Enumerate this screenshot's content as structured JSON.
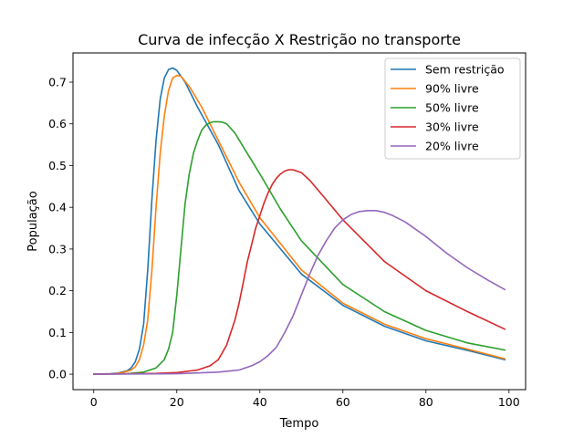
{
  "chart_data": {
    "type": "line",
    "title": "Curva de infecção X Restrição no transporte",
    "xlabel": "Tempo",
    "ylabel": "População",
    "xlim": [
      -5,
      104
    ],
    "ylim": [
      -0.037,
      0.77
    ],
    "xticks": [
      0,
      20,
      40,
      60,
      80,
      100
    ],
    "yticks": [
      0.0,
      0.1,
      0.2,
      0.3,
      0.4,
      0.5,
      0.6,
      0.7
    ],
    "grid": false,
    "legend_position": "top-right",
    "series": [
      {
        "name": "Sem restrição",
        "color": "#1f77b4",
        "x": [
          0,
          4,
          6,
          8,
          9,
          10,
          11,
          12,
          13,
          14,
          15,
          16,
          17,
          18,
          19,
          20,
          22,
          25,
          30,
          35,
          40,
          50,
          60,
          70,
          80,
          90,
          99
        ],
        "y": [
          0.0,
          0.001,
          0.003,
          0.008,
          0.015,
          0.03,
          0.06,
          0.12,
          0.25,
          0.42,
          0.56,
          0.66,
          0.71,
          0.73,
          0.734,
          0.728,
          0.7,
          0.64,
          0.55,
          0.44,
          0.36,
          0.24,
          0.165,
          0.115,
          0.08,
          0.057,
          0.035
        ]
      },
      {
        "name": "90% livre",
        "color": "#ff7f0e",
        "x": [
          0,
          5,
          7,
          9,
          10,
          11,
          12,
          13,
          14,
          15,
          16,
          17,
          18,
          19,
          20,
          21,
          23,
          26,
          30,
          35,
          40,
          50,
          60,
          70,
          80,
          90,
          99
        ],
        "y": [
          0.0,
          0.001,
          0.004,
          0.01,
          0.018,
          0.035,
          0.07,
          0.13,
          0.25,
          0.4,
          0.53,
          0.62,
          0.68,
          0.71,
          0.716,
          0.714,
          0.69,
          0.64,
          0.56,
          0.46,
          0.375,
          0.25,
          0.17,
          0.12,
          0.085,
          0.06,
          0.037
        ]
      },
      {
        "name": "50% livre",
        "color": "#2ca02c",
        "x": [
          0,
          8,
          12,
          15,
          17,
          18,
          19,
          20,
          21,
          22,
          23,
          24,
          25,
          26,
          27,
          28,
          29,
          30,
          31,
          32,
          34,
          36,
          40,
          45,
          50,
          60,
          70,
          80,
          90,
          99
        ],
        "y": [
          0.0,
          0.001,
          0.005,
          0.015,
          0.035,
          0.06,
          0.1,
          0.19,
          0.3,
          0.41,
          0.48,
          0.53,
          0.56,
          0.585,
          0.597,
          0.603,
          0.605,
          0.605,
          0.604,
          0.6,
          0.578,
          0.545,
          0.48,
          0.395,
          0.32,
          0.215,
          0.15,
          0.105,
          0.075,
          0.058
        ]
      },
      {
        "name": "30% livre",
        "color": "#d62728",
        "x": [
          0,
          15,
          20,
          25,
          28,
          30,
          32,
          34,
          35,
          36,
          37,
          38,
          39,
          40,
          41,
          42,
          43,
          44,
          45,
          46,
          47,
          48,
          50,
          52,
          55,
          60,
          70,
          80,
          90,
          99
        ],
        "y": [
          0.0,
          0.002,
          0.004,
          0.01,
          0.02,
          0.035,
          0.07,
          0.13,
          0.17,
          0.22,
          0.27,
          0.31,
          0.35,
          0.38,
          0.41,
          0.435,
          0.455,
          0.47,
          0.48,
          0.487,
          0.49,
          0.49,
          0.483,
          0.465,
          0.43,
          0.37,
          0.27,
          0.2,
          0.15,
          0.108
        ]
      },
      {
        "name": "20% livre",
        "color": "#9467bd",
        "x": [
          0,
          20,
          30,
          35,
          38,
          40,
          42,
          44,
          46,
          48,
          50,
          52,
          54,
          56,
          58,
          60,
          62,
          64,
          66,
          68,
          70,
          72,
          75,
          80,
          85,
          90,
          95,
          99
        ],
        "y": [
          0.0,
          0.001,
          0.005,
          0.01,
          0.02,
          0.03,
          0.045,
          0.065,
          0.1,
          0.14,
          0.19,
          0.24,
          0.285,
          0.32,
          0.35,
          0.37,
          0.383,
          0.39,
          0.392,
          0.392,
          0.388,
          0.38,
          0.365,
          0.33,
          0.29,
          0.255,
          0.225,
          0.203
        ]
      }
    ]
  }
}
